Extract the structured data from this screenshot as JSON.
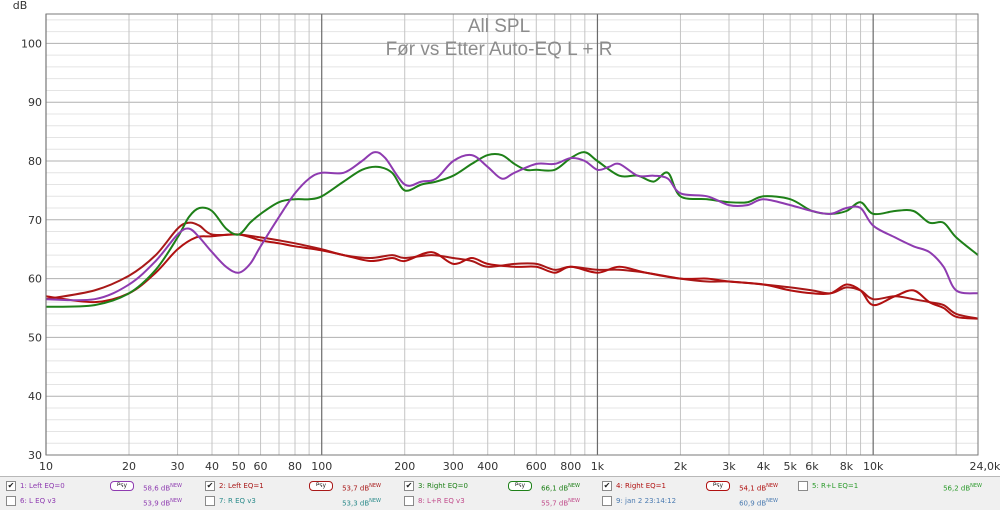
{
  "chart_data": {
    "type": "line",
    "title": "All SPL",
    "subtitle": "Før vs Etter Auto-EQ L + R",
    "ylabel": "dB",
    "x_scale": "log",
    "xlim": [
      10,
      24000
    ],
    "ylim": [
      30,
      105
    ],
    "grid": true,
    "y_ticks": [
      "30",
      "40",
      "50",
      "60",
      "70",
      "80",
      "90",
      "100"
    ],
    "x_ticks": [
      {
        "v": 10,
        "label": "10"
      },
      {
        "v": 20,
        "label": "20"
      },
      {
        "v": 30,
        "label": "30"
      },
      {
        "v": 40,
        "label": "40"
      },
      {
        "v": 50,
        "label": "50"
      },
      {
        "v": 60,
        "label": "60"
      },
      {
        "v": 80,
        "label": "80"
      },
      {
        "v": 100,
        "label": "100"
      },
      {
        "v": 200,
        "label": "200"
      },
      {
        "v": 300,
        "label": "300"
      },
      {
        "v": 400,
        "label": "400"
      },
      {
        "v": 600,
        "label": "600"
      },
      {
        "v": 800,
        "label": "800"
      },
      {
        "v": 1000,
        "label": "1k"
      },
      {
        "v": 2000,
        "label": "2k"
      },
      {
        "v": 3000,
        "label": "3k"
      },
      {
        "v": 4000,
        "label": "4k"
      },
      {
        "v": 5000,
        "label": "5k"
      },
      {
        "v": 6000,
        "label": "6k"
      },
      {
        "v": 8000,
        "label": "8k"
      },
      {
        "v": 10000,
        "label": "10k"
      },
      {
        "v": 24000,
        "label": "24,0kHz"
      }
    ],
    "series": [
      {
        "name": "1: Left EQ=0",
        "color": "#8e3bb0",
        "points": [
          [
            10,
            56.5
          ],
          [
            15,
            56.5
          ],
          [
            20,
            59
          ],
          [
            25,
            63
          ],
          [
            30,
            67.5
          ],
          [
            33,
            68.5
          ],
          [
            36,
            67
          ],
          [
            40,
            64.5
          ],
          [
            45,
            62
          ],
          [
            50,
            61
          ],
          [
            55,
            62.5
          ],
          [
            60,
            65.5
          ],
          [
            70,
            70.5
          ],
          [
            80,
            74.5
          ],
          [
            90,
            77
          ],
          [
            100,
            78
          ],
          [
            120,
            78
          ],
          [
            140,
            80
          ],
          [
            155,
            81.5
          ],
          [
            170,
            80.5
          ],
          [
            200,
            76
          ],
          [
            230,
            76.5
          ],
          [
            260,
            77
          ],
          [
            300,
            80
          ],
          [
            350,
            81
          ],
          [
            400,
            79
          ],
          [
            450,
            77
          ],
          [
            500,
            78
          ],
          [
            600,
            79.5
          ],
          [
            700,
            79.5
          ],
          [
            800,
            80.5
          ],
          [
            900,
            80
          ],
          [
            1000,
            78.5
          ],
          [
            1100,
            79
          ],
          [
            1200,
            79.5
          ],
          [
            1400,
            77.5
          ],
          [
            1600,
            77.5
          ],
          [
            1800,
            77
          ],
          [
            2000,
            74.5
          ],
          [
            2500,
            74
          ],
          [
            3000,
            72.5
          ],
          [
            3500,
            72.5
          ],
          [
            4000,
            73.5
          ],
          [
            5000,
            72.5
          ],
          [
            6000,
            71.5
          ],
          [
            7000,
            71
          ],
          [
            8000,
            72
          ],
          [
            9000,
            72
          ],
          [
            10000,
            69
          ],
          [
            12000,
            67
          ],
          [
            14000,
            65.5
          ],
          [
            16000,
            64.5
          ],
          [
            18000,
            62
          ],
          [
            20000,
            58
          ],
          [
            24000,
            57.5
          ]
        ]
      },
      {
        "name": "2: Left EQ=1",
        "color": "#a81818",
        "points": [
          [
            10,
            56.5
          ],
          [
            15,
            58
          ],
          [
            20,
            60.5
          ],
          [
            25,
            64
          ],
          [
            30,
            68.5
          ],
          [
            33,
            69.5
          ],
          [
            36,
            69
          ],
          [
            40,
            67.5
          ],
          [
            50,
            67.5
          ],
          [
            60,
            67
          ],
          [
            70,
            66.5
          ],
          [
            80,
            66
          ],
          [
            100,
            65
          ],
          [
            120,
            64
          ],
          [
            150,
            63.5
          ],
          [
            180,
            64
          ],
          [
            200,
            63.5
          ],
          [
            250,
            64
          ],
          [
            300,
            63.5
          ],
          [
            350,
            63
          ],
          [
            400,
            62
          ],
          [
            500,
            62.5
          ],
          [
            600,
            62.5
          ],
          [
            700,
            61.5
          ],
          [
            800,
            62
          ],
          [
            1000,
            61.5
          ],
          [
            1200,
            61.5
          ],
          [
            1500,
            61
          ],
          [
            2000,
            60
          ],
          [
            2500,
            59.5
          ],
          [
            3000,
            59.5
          ],
          [
            4000,
            59
          ],
          [
            5000,
            58.5
          ],
          [
            6000,
            58
          ],
          [
            7000,
            57.5
          ],
          [
            8000,
            58.5
          ],
          [
            9000,
            58
          ],
          [
            10000,
            56.5
          ],
          [
            12000,
            57
          ],
          [
            14000,
            56.5
          ],
          [
            16000,
            56
          ],
          [
            18000,
            55.5
          ],
          [
            20000,
            54
          ],
          [
            24000,
            53.2
          ]
        ]
      },
      {
        "name": "3: Right EQ=0",
        "color": "#1e8018",
        "points": [
          [
            10,
            55.2
          ],
          [
            15,
            55.5
          ],
          [
            20,
            57.5
          ],
          [
            25,
            61.5
          ],
          [
            30,
            67
          ],
          [
            33,
            70.5
          ],
          [
            36,
            72
          ],
          [
            40,
            71.5
          ],
          [
            45,
            68.5
          ],
          [
            50,
            67.5
          ],
          [
            55,
            69.5
          ],
          [
            60,
            71
          ],
          [
            70,
            73
          ],
          [
            80,
            73.5
          ],
          [
            90,
            73.5
          ],
          [
            100,
            74
          ],
          [
            120,
            76.5
          ],
          [
            140,
            78.5
          ],
          [
            160,
            79
          ],
          [
            180,
            78
          ],
          [
            200,
            75
          ],
          [
            230,
            76
          ],
          [
            260,
            76.5
          ],
          [
            300,
            77.5
          ],
          [
            350,
            79.5
          ],
          [
            400,
            81
          ],
          [
            450,
            81
          ],
          [
            500,
            79.5
          ],
          [
            550,
            78.5
          ],
          [
            600,
            78.5
          ],
          [
            700,
            78.5
          ],
          [
            800,
            80.5
          ],
          [
            900,
            81.5
          ],
          [
            1000,
            80
          ],
          [
            1200,
            77.5
          ],
          [
            1400,
            77.5
          ],
          [
            1600,
            76.5
          ],
          [
            1800,
            78
          ],
          [
            2000,
            74
          ],
          [
            2500,
            73.5
          ],
          [
            3000,
            73
          ],
          [
            3500,
            73
          ],
          [
            4000,
            74
          ],
          [
            5000,
            73.5
          ],
          [
            6000,
            71.5
          ],
          [
            7000,
            71
          ],
          [
            8000,
            71.5
          ],
          [
            9000,
            73
          ],
          [
            10000,
            71
          ],
          [
            12000,
            71.5
          ],
          [
            14000,
            71.5
          ],
          [
            16000,
            69.5
          ],
          [
            18000,
            69.5
          ],
          [
            20000,
            67
          ],
          [
            24000,
            64
          ]
        ]
      },
      {
        "name": "4: Right EQ=1",
        "color": "#b01010",
        "points": [
          [
            10,
            57
          ],
          [
            15,
            56
          ],
          [
            20,
            57.5
          ],
          [
            25,
            61
          ],
          [
            30,
            65
          ],
          [
            35,
            67
          ],
          [
            40,
            67.2
          ],
          [
            50,
            67.5
          ],
          [
            60,
            66.5
          ],
          [
            70,
            66
          ],
          [
            80,
            65.5
          ],
          [
            100,
            64.8
          ],
          [
            120,
            64
          ],
          [
            150,
            63
          ],
          [
            180,
            63.5
          ],
          [
            200,
            63
          ],
          [
            250,
            64.5
          ],
          [
            300,
            62.5
          ],
          [
            350,
            63.5
          ],
          [
            400,
            62.5
          ],
          [
            500,
            62
          ],
          [
            600,
            62
          ],
          [
            700,
            61
          ],
          [
            800,
            62
          ],
          [
            1000,
            61
          ],
          [
            1200,
            62
          ],
          [
            1500,
            61
          ],
          [
            2000,
            60
          ],
          [
            2500,
            60
          ],
          [
            3000,
            59.5
          ],
          [
            4000,
            59
          ],
          [
            5000,
            58
          ],
          [
            6000,
            57.5
          ],
          [
            7000,
            57.5
          ],
          [
            8000,
            59
          ],
          [
            9000,
            58
          ],
          [
            10000,
            55.5
          ],
          [
            12000,
            57
          ],
          [
            14000,
            58
          ],
          [
            16000,
            56
          ],
          [
            18000,
            55
          ],
          [
            20000,
            53.5
          ],
          [
            24000,
            53.2
          ]
        ]
      }
    ]
  },
  "legend": {
    "items": [
      {
        "label": "1: Left EQ=0",
        "checked": true,
        "color": "#8e3bb0",
        "psy": "Psy",
        "value": "58,6 dB",
        "sup": "NEW"
      },
      {
        "label": "2: Left EQ=1",
        "checked": true,
        "color": "#a81818",
        "psy": "Psy",
        "value": "53,7 dB",
        "sup": "NEW"
      },
      {
        "label": "3: Right EQ=0",
        "checked": true,
        "color": "#1e8018",
        "psy": "Psy",
        "value": "66,1 dB",
        "sup": "NEW"
      },
      {
        "label": "4: Right EQ=1",
        "checked": true,
        "color": "#b01010",
        "psy": "Psy",
        "value": "54,1 dB",
        "sup": "NEW"
      },
      {
        "label": "5: R+L EQ=1",
        "checked": false,
        "color": "#2a9a2a",
        "psy": "",
        "value": "56,2 dB",
        "sup": "NEW"
      },
      {
        "label": "6: L EQ v3",
        "checked": false,
        "color": "#8e3bb0",
        "psy": "",
        "value": "53,9 dB",
        "sup": "NEW"
      },
      {
        "label": "7: R EQ v3",
        "checked": false,
        "color": "#2a8a8a",
        "psy": "",
        "value": "53,3 dB",
        "sup": "NEW"
      },
      {
        "label": "8: L+R EQ v3",
        "checked": false,
        "color": "#c04a8a",
        "psy": "",
        "value": "55,7 dB",
        "sup": "NEW"
      },
      {
        "label": "9: jan 2 23:14:12",
        "checked": false,
        "color": "#4a7ab0",
        "psy": "",
        "value": "60,9 dB",
        "sup": "NEW"
      }
    ]
  }
}
